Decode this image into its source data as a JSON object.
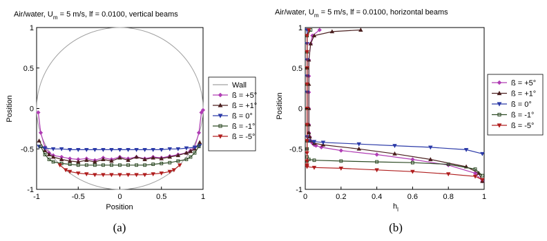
{
  "chart_data": [
    {
      "type": "line",
      "title": "Air/water, U_m = 5 m/s, lf = 0.0100, vertical beams",
      "title_parts": {
        "a": "Air/water, U",
        "sub": "m",
        "b": " = 5 m/s, lf = 0.0100, vertical beams"
      },
      "xlabel": "Position",
      "ylabel": "Position",
      "caption": "(a)",
      "xlim": [
        -1,
        1
      ],
      "ylim": [
        -1,
        1
      ],
      "xticks": [
        "-1",
        "-0.5",
        "0",
        "0.5",
        "1"
      ],
      "yticks": [
        "-1",
        "-0.5",
        "0",
        "0.5",
        "1"
      ],
      "grid": false,
      "legend_position": "right",
      "wall": {
        "name": "Wall",
        "color": "#a0a0a0"
      },
      "series": [
        {
          "name": "ß = +5°",
          "color": "#b03cb4",
          "marker": "diamond",
          "x": [
            -0.98,
            -0.95,
            -0.9,
            -0.85,
            -0.8,
            -0.7,
            -0.6,
            -0.5,
            -0.4,
            -0.3,
            -0.2,
            -0.1,
            0,
            0.1,
            0.2,
            0.3,
            0.4,
            0.5,
            0.6,
            0.7,
            0.8,
            0.85,
            0.9,
            0.95,
            0.98,
            1
          ],
          "y": [
            -0.05,
            -0.3,
            -0.48,
            -0.55,
            -0.58,
            -0.6,
            -0.62,
            -0.63,
            -0.62,
            -0.64,
            -0.61,
            -0.63,
            -0.6,
            -0.62,
            -0.6,
            -0.62,
            -0.6,
            -0.61,
            -0.59,
            -0.57,
            -0.55,
            -0.52,
            -0.48,
            -0.3,
            -0.05,
            -0.02
          ]
        },
        {
          "name": "ß = +1°",
          "color": "#4a1f1f",
          "marker": "triangle-up",
          "x": [
            -0.97,
            -0.9,
            -0.85,
            -0.8,
            -0.7,
            -0.6,
            -0.5,
            -0.4,
            -0.3,
            -0.2,
            -0.1,
            0,
            0.1,
            0.2,
            0.3,
            0.4,
            0.5,
            0.6,
            0.7,
            0.8,
            0.85,
            0.9,
            0.96
          ],
          "y": [
            -0.4,
            -0.52,
            -0.57,
            -0.6,
            -0.63,
            -0.65,
            -0.66,
            -0.64,
            -0.66,
            -0.63,
            -0.65,
            -0.61,
            -0.64,
            -0.6,
            -0.63,
            -0.61,
            -0.62,
            -0.6,
            -0.58,
            -0.55,
            -0.53,
            -0.5,
            -0.42
          ]
        },
        {
          "name": "ß = 0°",
          "color": "#2b3aa8",
          "marker": "triangle-down",
          "x": [
            -0.97,
            -0.9,
            -0.8,
            -0.7,
            -0.6,
            -0.5,
            -0.4,
            -0.3,
            -0.2,
            -0.1,
            0,
            0.1,
            0.2,
            0.3,
            0.4,
            0.5,
            0.6,
            0.7,
            0.8,
            0.9,
            0.96
          ],
          "y": [
            -0.47,
            -0.49,
            -0.5,
            -0.5,
            -0.51,
            -0.51,
            -0.51,
            -0.51,
            -0.51,
            -0.51,
            -0.51,
            -0.51,
            -0.51,
            -0.51,
            -0.51,
            -0.51,
            -0.5,
            -0.5,
            -0.49,
            -0.48,
            -0.46
          ]
        },
        {
          "name": "ß = -1°",
          "color": "#2d4a24",
          "marker": "square",
          "x": [
            -0.95,
            -0.9,
            -0.85,
            -0.8,
            -0.7,
            -0.6,
            -0.5,
            -0.4,
            -0.3,
            -0.2,
            -0.1,
            0,
            0.1,
            0.2,
            0.3,
            0.4,
            0.5,
            0.6,
            0.7,
            0.8,
            0.85,
            0.9,
            0.95
          ],
          "y": [
            -0.47,
            -0.57,
            -0.63,
            -0.66,
            -0.68,
            -0.69,
            -0.7,
            -0.7,
            -0.7,
            -0.7,
            -0.7,
            -0.7,
            -0.7,
            -0.7,
            -0.7,
            -0.69,
            -0.68,
            -0.67,
            -0.65,
            -0.63,
            -0.6,
            -0.55,
            -0.47
          ]
        },
        {
          "name": "ß = -5°",
          "color": "#b01e1e",
          "marker": "triangle-down",
          "x": [
            -0.72,
            -0.65,
            -0.6,
            -0.5,
            -0.4,
            -0.3,
            -0.2,
            -0.1,
            0,
            0.1,
            0.2,
            0.3,
            0.4,
            0.5,
            0.6,
            0.65,
            0.72
          ],
          "y": [
            -0.7,
            -0.76,
            -0.78,
            -0.8,
            -0.81,
            -0.82,
            -0.82,
            -0.82,
            -0.82,
            -0.82,
            -0.82,
            -0.82,
            -0.81,
            -0.8,
            -0.78,
            -0.76,
            -0.7
          ]
        }
      ]
    },
    {
      "type": "line",
      "title": "Air/water, U_m = 5 m/s, lf = 0.0100, horizontal beams",
      "title_parts": {
        "a": "Air/water, U",
        "sub": "m",
        "b": " = 5 m/s, lf = 0.0100, horizontal beams"
      },
      "xlabel": "h_l",
      "xlabel_parts": {
        "a": "h",
        "sub": "l"
      },
      "ylabel": "Position",
      "caption": "(b)",
      "xlim": [
        0,
        1
      ],
      "ylim": [
        -1,
        1
      ],
      "xticks": [
        "0",
        "0.2",
        "0.4",
        "0.6",
        "0.8",
        "1"
      ],
      "yticks": [
        "-1",
        "-0.5",
        "0",
        "0.5",
        "1"
      ],
      "grid": false,
      "legend_position": "right",
      "series": [
        {
          "name": "ß = +5°",
          "color": "#b03cb4",
          "marker": "diamond",
          "x": [
            0.08,
            0.04,
            0.03,
            0.02,
            0.02,
            0.02,
            0.02,
            0.02,
            0.02,
            0.025,
            0.03,
            0.04,
            0.05,
            0.06,
            0.09,
            0.2,
            0.4,
            0.6,
            0.8,
            0.95,
            0.99
          ],
          "y": [
            0.97,
            0.9,
            0.8,
            0.6,
            0.4,
            0.2,
            0.0,
            -0.2,
            -0.3,
            -0.35,
            -0.4,
            -0.43,
            -0.45,
            -0.46,
            -0.48,
            -0.52,
            -0.57,
            -0.63,
            -0.7,
            -0.8,
            -0.9
          ]
        },
        {
          "name": "ß = +1°",
          "color": "#4a1f1f",
          "marker": "triangle-up",
          "x": [
            0.31,
            0.15,
            0.05,
            0.03,
            0.02,
            0.02,
            0.02,
            0.02,
            0.02,
            0.025,
            0.03,
            0.05,
            0.1,
            0.3,
            0.5,
            0.7,
            0.9,
            0.97,
            0.99
          ],
          "y": [
            0.97,
            0.95,
            0.9,
            0.8,
            0.6,
            0.3,
            0.0,
            -0.2,
            -0.3,
            -0.35,
            -0.4,
            -0.43,
            -0.45,
            -0.5,
            -0.56,
            -0.63,
            -0.72,
            -0.8,
            -0.9
          ]
        },
        {
          "name": "ß = 0°",
          "color": "#2b3aa8",
          "marker": "triangle-down",
          "x": [
            0.01,
            0.01,
            0.01,
            0.01,
            0.01,
            0.01,
            0.01,
            0.01,
            0.02,
            0.05,
            0.1,
            0.3,
            0.5,
            0.7,
            0.9,
            0.99
          ],
          "y": [
            0.97,
            0.8,
            0.6,
            0.4,
            0.2,
            0.0,
            -0.2,
            -0.35,
            -0.4,
            -0.41,
            -0.42,
            -0.44,
            -0.46,
            -0.48,
            -0.51,
            -0.56
          ]
        },
        {
          "name": "ß = -1°",
          "color": "#2d4a24",
          "marker": "square",
          "x": [
            0.03,
            0.01,
            0.01,
            0.01,
            0.01,
            0.01,
            0.01,
            0.01,
            0.01,
            0.01,
            0.01,
            0.02,
            0.05,
            0.2,
            0.4,
            0.6,
            0.8,
            0.95,
            0.99
          ],
          "y": [
            0.97,
            0.9,
            0.7,
            0.5,
            0.3,
            0.0,
            -0.2,
            -0.4,
            -0.5,
            -0.6,
            -0.65,
            -0.63,
            -0.64,
            -0.65,
            -0.66,
            -0.67,
            -0.69,
            -0.75,
            -0.83
          ]
        },
        {
          "name": "ß = -5°",
          "color": "#b01e1e",
          "marker": "triangle-down",
          "x": [
            0.02,
            0.01,
            0.01,
            0.01,
            0.01,
            0.01,
            0.01,
            0.01,
            0.01,
            0.01,
            0.01,
            0.01,
            0.05,
            0.2,
            0.4,
            0.6,
            0.8,
            0.95,
            0.99
          ],
          "y": [
            0.97,
            0.9,
            0.7,
            0.5,
            0.3,
            0.0,
            -0.2,
            -0.4,
            -0.55,
            -0.65,
            -0.7,
            -0.72,
            -0.73,
            -0.74,
            -0.76,
            -0.78,
            -0.81,
            -0.84,
            -0.88
          ]
        }
      ]
    }
  ]
}
